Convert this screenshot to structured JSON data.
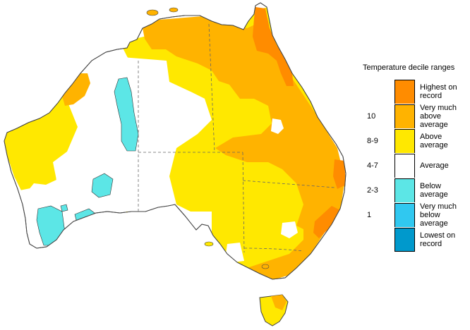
{
  "legend": {
    "title": "Temperature decile ranges",
    "items": [
      {
        "label": "Highest on record",
        "decile": "",
        "color": "#ff8c00"
      },
      {
        "label": "Very much above average",
        "decile": "10",
        "color": "#ffb300"
      },
      {
        "label": "Above average",
        "decile": "8-9",
        "color": "#ffe800"
      },
      {
        "label": "Average",
        "decile": "4-7",
        "color": "#ffffff"
      },
      {
        "label": "Below average",
        "decile": "2-3",
        "color": "#5ce6e6"
      },
      {
        "label": "Very much below average",
        "decile": "1",
        "color": "#30c8f0"
      },
      {
        "label": "Lowest on record",
        "decile": "",
        "color": "#0099cc"
      }
    ]
  }
}
